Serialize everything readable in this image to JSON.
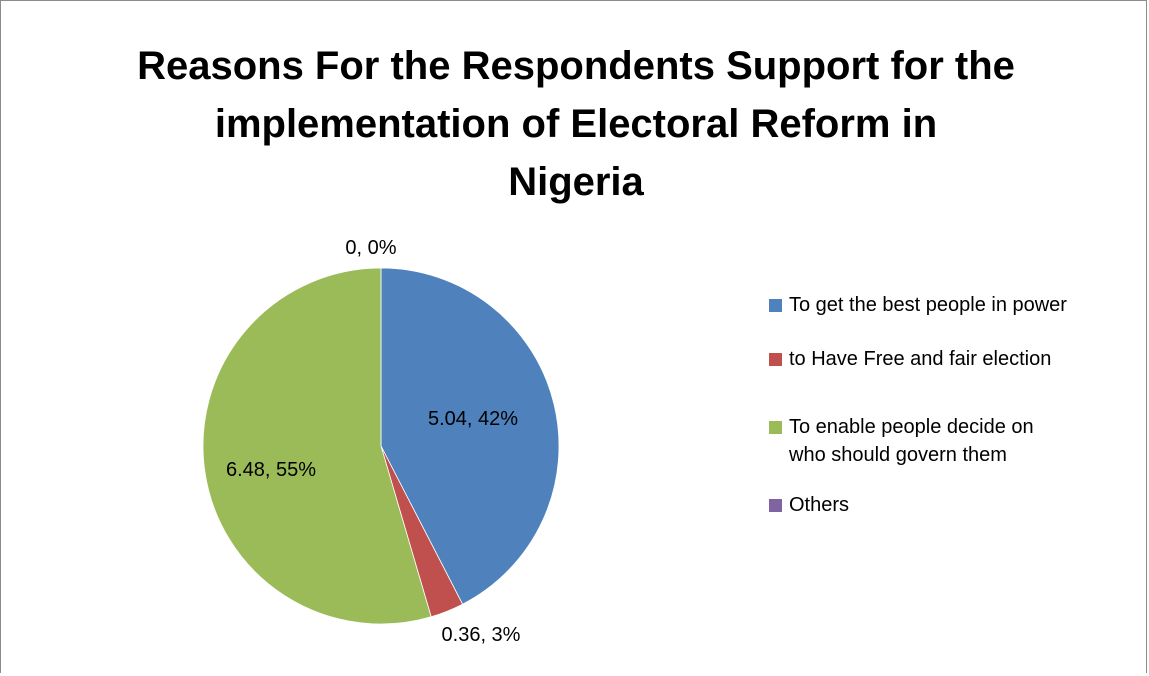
{
  "chart_data": {
    "type": "pie",
    "title_lines": [
      "Reasons For the Respondents Support for the",
      "implementation of Electoral Reform in",
      "Nigeria"
    ],
    "slices": [
      {
        "name": "To get the best people in power",
        "value": 5.04,
        "percent_label": "5.04, 42%",
        "color": "#4f81bd"
      },
      {
        "name": "to Have Free and fair election",
        "value": 0.36,
        "percent_label": "0.36, 3%",
        "color": "#c0504d"
      },
      {
        "name": "To enable people decide on who should govern them",
        "value": 6.48,
        "percent_label": "6.48, 55%",
        "color": "#9bbb59"
      },
      {
        "name": "Others",
        "value": 0,
        "percent_label": "0, 0%",
        "color": "#8064a2"
      }
    ],
    "legend": {
      "placement": "right",
      "items": [
        {
          "lines": [
            "To get the best people in power"
          ],
          "color": "#4f81bd"
        },
        {
          "lines": [
            "to Have Free and fair election"
          ],
          "color": "#c0504d"
        },
        {
          "lines": [
            "To enable people decide on",
            "who should govern them"
          ],
          "color": "#9bbb59"
        },
        {
          "lines": [
            "Others"
          ],
          "color": "#8064a2"
        }
      ]
    }
  }
}
